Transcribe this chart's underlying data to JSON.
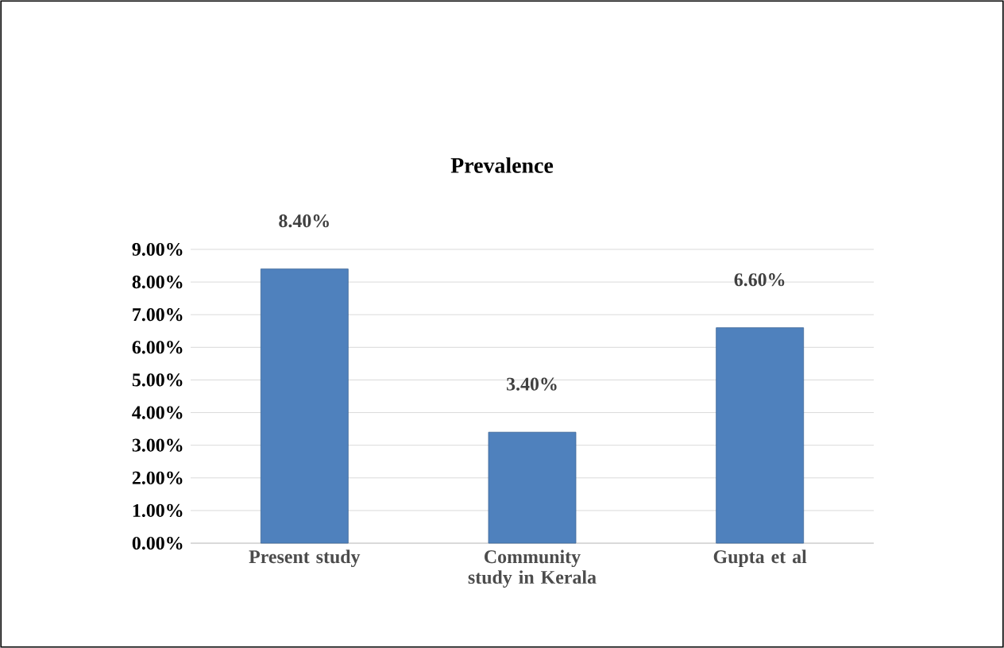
{
  "chart_data": {
    "type": "bar",
    "title": "Prevalence",
    "categories": [
      "Present study",
      "Community study in Kerala",
      "Gupta et al"
    ],
    "values": [
      8.4,
      3.4,
      6.6
    ],
    "value_labels": [
      "8.40%",
      "3.40%",
      "6.60%"
    ],
    "color": "#4f81bd",
    "ylim": [
      0,
      9
    ],
    "yticks": [
      {
        "value": 0,
        "label": "0.00%"
      },
      {
        "value": 1,
        "label": "1.00%"
      },
      {
        "value": 2,
        "label": "2.00%"
      },
      {
        "value": 3,
        "label": "3.00%"
      },
      {
        "value": 4,
        "label": "4.00%"
      },
      {
        "value": 5,
        "label": "5.00%"
      },
      {
        "value": 6,
        "label": "6.00%"
      },
      {
        "value": 7,
        "label": "7.00%"
      },
      {
        "value": 8,
        "label": "8.00%"
      },
      {
        "value": 9,
        "label": "9.00%"
      }
    ],
    "grid": "y"
  }
}
